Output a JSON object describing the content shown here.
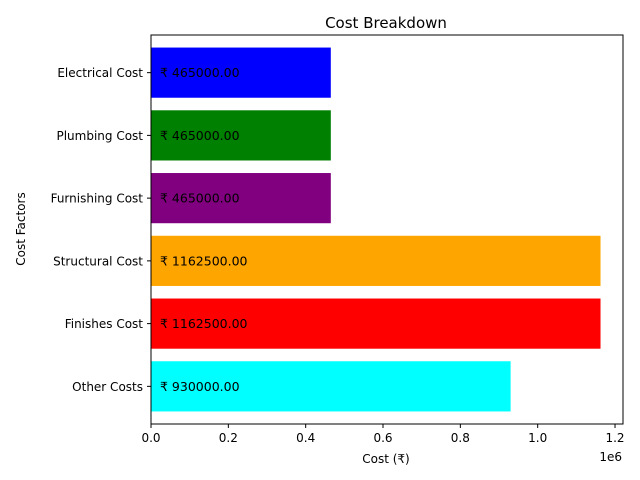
{
  "chart_data": {
    "type": "bar",
    "orientation": "horizontal",
    "title": "Cost Breakdown",
    "xlabel": "Cost (₹)",
    "ylabel": "Cost Factors",
    "categories": [
      "Other Costs",
      "Finishes Cost",
      "Structural Cost",
      "Furnishing Cost",
      "Plumbing Cost",
      "Electrical Cost"
    ],
    "values": [
      930000,
      1162500,
      1162500,
      465000,
      465000,
      465000
    ],
    "data_labels": [
      "₹ 930000.00",
      "₹ 1162500.00",
      "₹ 1162500.00",
      "₹ 465000.00",
      "₹ 465000.00",
      "₹ 465000.00"
    ],
    "colors": [
      "#00ffff",
      "#ff0000",
      "#ffa500",
      "#800080",
      "#008000",
      "#0000ff"
    ],
    "xlim": [
      0,
      1220625
    ],
    "xticks": [
      0,
      200000,
      400000,
      600000,
      800000,
      1000000,
      1200000
    ],
    "xtick_labels": [
      "0.0",
      "0.2",
      "0.4",
      "0.6",
      "0.8",
      "1.0",
      "1.2"
    ],
    "x_offset_label": "1e6",
    "grid": false,
    "legend": "none"
  }
}
